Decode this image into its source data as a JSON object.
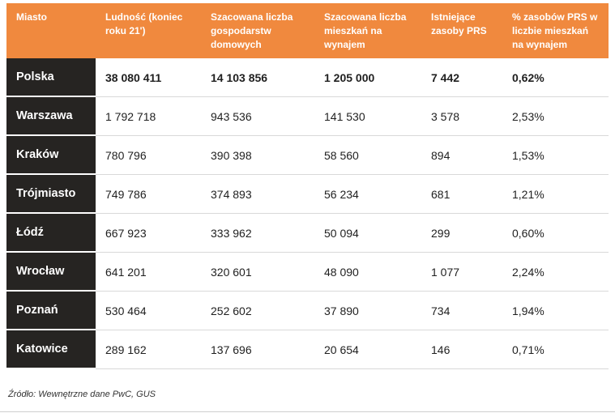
{
  "chart_data": {
    "type": "table",
    "columns": [
      "Miasto",
      "Ludność (koniec roku 21')",
      "Szacowana liczba gospodarstw domowych",
      "Szacowana liczba mieszkań na wynajem",
      "Istniejące zasoby PRS",
      "% zasobów PRS w liczbie mieszkań na wynajem"
    ],
    "rows": [
      {
        "city": "Polska",
        "values": [
          "38 080 411",
          "14 103 856",
          "1 205 000",
          "7 442",
          "0,62%"
        ]
      },
      {
        "city": "Warszawa",
        "values": [
          "1 792 718",
          "943 536",
          "141 530",
          "3 578",
          "2,53%"
        ]
      },
      {
        "city": "Kraków",
        "values": [
          "780 796",
          "390 398",
          "58 560",
          "894",
          "1,53%"
        ]
      },
      {
        "city": "Trójmiasto",
        "values": [
          "749 786",
          "374 893",
          "56 234",
          "681",
          "1,21%"
        ]
      },
      {
        "city": "Łódź",
        "values": [
          "667 923",
          "333 962",
          "50 094",
          "299",
          "0,60%"
        ]
      },
      {
        "city": "Wrocław",
        "values": [
          "641 201",
          "320 601",
          "48 090",
          "1 077",
          "2,24%"
        ]
      },
      {
        "city": "Poznań",
        "values": [
          "530 464",
          "252 602",
          "37 890",
          "734",
          "1,94%"
        ]
      },
      {
        "city": "Katowice",
        "values": [
          "289 162",
          "137 696",
          "20 654",
          "146",
          "0,71%"
        ]
      }
    ],
    "source": "Źródło: Wewnętrzne dane PwC, GUS",
    "layout": {
      "header_position": "top",
      "first_column_style": "dark",
      "grid": "horizontal-lines"
    }
  },
  "colors": {
    "header_bg": "#F0893E",
    "header_text": "#FFFFFF",
    "city_bg": "#262422",
    "city_text": "#FFFFFF",
    "row_bg": "#FFFFFF",
    "row_border": "#D9D9D9",
    "text": "#1F1F1F",
    "source_text": "#333333"
  }
}
